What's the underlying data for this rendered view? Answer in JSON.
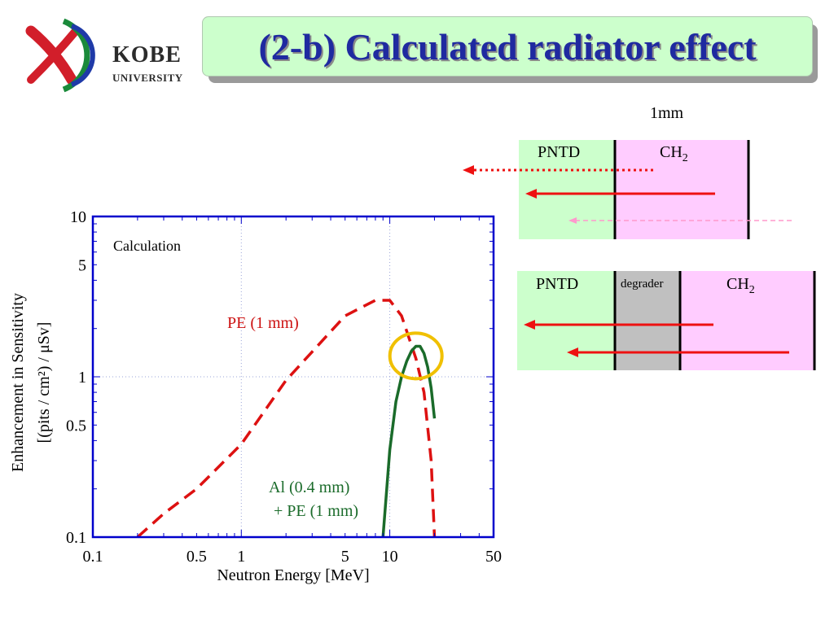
{
  "header": {
    "title": "(2-b) Calculated radiator effect",
    "logo": {
      "name": "KOBE",
      "sub": "UNIVERSITY"
    }
  },
  "chart_data": {
    "type": "line",
    "xscale": "log",
    "yscale": "log",
    "xlim": [
      0.1,
      50
    ],
    "ylim": [
      0.1,
      10
    ],
    "x_tick_labels": [
      "0.1",
      "0.5",
      "1",
      "5",
      "10",
      "50"
    ],
    "y_tick_labels": [
      "10",
      "5",
      "1",
      "0.5",
      "0.1"
    ],
    "xlabel": "Neutron Energy [MeV]",
    "ylabel_line1": "Enhancement in Sensitivity",
    "ylabel_line2": "[(pits / cm²) / μSv]",
    "annotation": "Calculation",
    "grid": "dotted at 1 and 10",
    "series": [
      {
        "name": "PE (1 mm)",
        "color": "#dd1111",
        "style": "dashed",
        "x": [
          0.2,
          0.3,
          0.5,
          1,
          2,
          5,
          8,
          10,
          12,
          15,
          17,
          19,
          20
        ],
        "y": [
          0.1,
          0.14,
          0.2,
          0.38,
          0.95,
          2.4,
          3.0,
          3.0,
          2.4,
          1.3,
          0.8,
          0.3,
          0.1
        ]
      },
      {
        "name": "Al (0.4 mm)",
        "name_line2": "+ PE (1 mm)",
        "color": "#1a6b2a",
        "style": "solid",
        "x": [
          9,
          10,
          11,
          12,
          13,
          14,
          15,
          16,
          17,
          18,
          19,
          20
        ],
        "y": [
          0.1,
          0.35,
          0.7,
          1.0,
          1.25,
          1.45,
          1.55,
          1.55,
          1.4,
          1.15,
          0.85,
          0.55
        ]
      }
    ],
    "highlight_circle": {
      "x": 15,
      "y": 1.35,
      "color": "#f0c000"
    }
  },
  "diagram": {
    "thickness_label": "1mm",
    "top": {
      "pntd": "PNTD",
      "ch2": "CH",
      "ch2_sub": "2"
    },
    "bottom": {
      "pntd": "PNTD",
      "degrader": "degrader",
      "ch2": "CH",
      "ch2_sub": "2"
    },
    "colors": {
      "green": "#ccffcc",
      "pink": "#ffccff",
      "gray": "#c0c0c0",
      "red": "#ee1111",
      "pale": "#ff99cc"
    }
  }
}
